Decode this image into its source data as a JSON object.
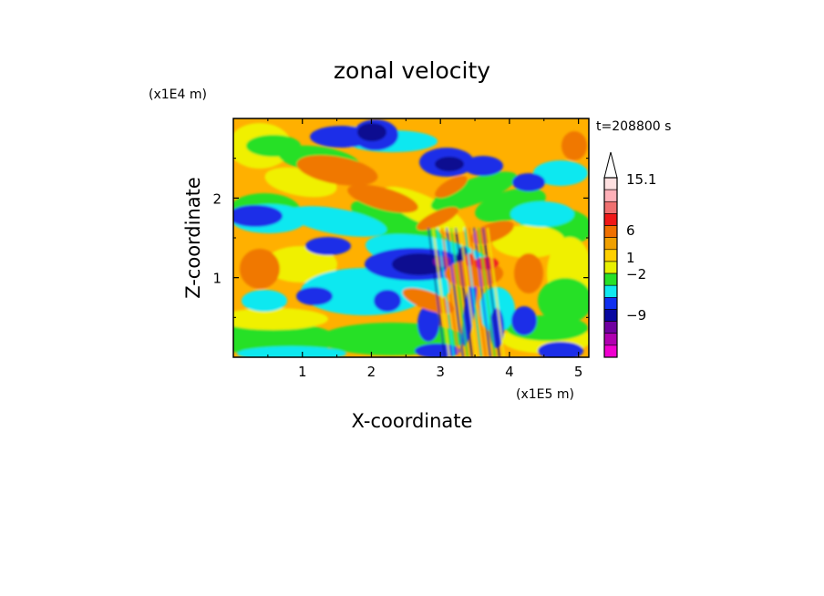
{
  "chart_data": {
    "type": "heatmap",
    "title": "zonal velocity",
    "xlabel": "X-coordinate",
    "ylabel": "Z-coordinate",
    "x_unit": "(x1E5 m)",
    "y_unit": "(x1E4 m)",
    "time_label": "t=208800 s",
    "xlim": [
      0,
      5.15
    ],
    "ylim": [
      0,
      3.0
    ],
    "xticks": [
      1,
      2,
      3,
      4,
      5
    ],
    "yticks": [
      1,
      2
    ],
    "colorbar": {
      "labels": [
        "15.1",
        "6",
        "1",
        "−2",
        "−9"
      ],
      "label_values": [
        15.1,
        6,
        1,
        -2,
        -9
      ],
      "colors_top_to_bottom": [
        "#ffe0e0",
        "#ffb0b8",
        "#f07070",
        "#f01818",
        "#f07000",
        "#f0a000",
        "#ffd000",
        "#e8f000",
        "#28e028",
        "#10e8f0",
        "#1030f0",
        "#0808a0",
        "#7000a0",
        "#b000b0",
        "#f000d0"
      ],
      "extend_max": true
    },
    "palette": {
      "dark_blue": "#0a0a90",
      "blue": "#1e2ee8",
      "cyan": "#10e8f0",
      "green": "#28e028",
      "yellow": "#f0f000",
      "orange": "#ffb000",
      "dark_orange": "#f07800",
      "red": "#f02020",
      "purple": "#8000a8"
    }
  }
}
